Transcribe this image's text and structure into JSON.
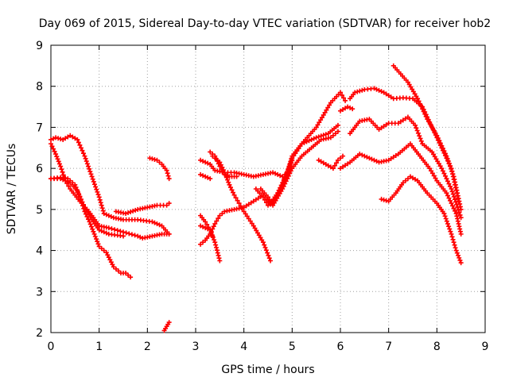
{
  "chart_data": {
    "type": "scatter",
    "title": "Day 069 of 2015, Sidereal Day-to-day VTEC variation (SDTVAR) for receiver hob2",
    "xlabel": "GPS time / hours",
    "ylabel": "SDTVAR / TECUs",
    "xlim": [
      0,
      9
    ],
    "ylim": [
      2,
      9
    ],
    "xticks": [
      "0",
      "1",
      "2",
      "3",
      "4",
      "5",
      "6",
      "7",
      "8",
      "9"
    ],
    "yticks": [
      "2",
      "3",
      "4",
      "5",
      "6",
      "7",
      "8",
      "9"
    ],
    "grid": true,
    "marker": "plus",
    "color": "#ff0000",
    "series": [
      {
        "name": "s1",
        "points": [
          [
            0.0,
            6.7
          ],
          [
            0.1,
            6.75
          ],
          [
            0.25,
            6.7
          ],
          [
            0.4,
            6.8
          ],
          [
            0.55,
            6.7
          ],
          [
            0.7,
            6.3
          ],
          [
            0.85,
            5.8
          ],
          [
            1.0,
            5.3
          ],
          [
            1.1,
            4.9
          ],
          [
            1.3,
            4.8
          ],
          [
            1.5,
            4.75
          ],
          [
            1.8,
            4.75
          ],
          [
            2.1,
            4.7
          ],
          [
            2.3,
            4.6
          ],
          [
            2.45,
            4.4
          ]
        ]
      },
      {
        "name": "s2",
        "points": [
          [
            0.0,
            6.6
          ],
          [
            0.1,
            6.35
          ],
          [
            0.2,
            6.05
          ],
          [
            0.3,
            5.7
          ],
          [
            0.4,
            5.5
          ],
          [
            0.5,
            5.35
          ],
          [
            0.6,
            5.2
          ],
          [
            0.75,
            5.0
          ],
          [
            0.85,
            4.85
          ],
          [
            1.0,
            4.6
          ],
          [
            1.2,
            4.55
          ],
          [
            1.5,
            4.45
          ],
          [
            1.8,
            4.35
          ],
          [
            1.9,
            4.3
          ],
          [
            2.1,
            4.35
          ],
          [
            2.3,
            4.4
          ],
          [
            2.45,
            4.4
          ]
        ]
      },
      {
        "name": "s3",
        "points": [
          [
            0.0,
            5.75
          ],
          [
            0.2,
            5.78
          ],
          [
            0.35,
            5.75
          ],
          [
            0.5,
            5.6
          ],
          [
            0.6,
            5.3
          ],
          [
            0.7,
            4.95
          ],
          [
            0.8,
            4.7
          ],
          [
            0.9,
            4.4
          ],
          [
            1.0,
            4.1
          ],
          [
            1.15,
            3.95
          ],
          [
            1.3,
            3.6
          ],
          [
            1.45,
            3.45
          ],
          [
            1.55,
            3.45
          ],
          [
            1.65,
            3.35
          ]
        ]
      },
      {
        "name": "s4",
        "points": [
          [
            0.0,
            5.75
          ],
          [
            0.2,
            5.75
          ],
          [
            0.4,
            5.65
          ],
          [
            0.55,
            5.45
          ],
          [
            0.7,
            5.05
          ],
          [
            0.85,
            4.75
          ],
          [
            1.0,
            4.5
          ],
          [
            1.2,
            4.4
          ],
          [
            1.5,
            4.35
          ]
        ]
      },
      {
        "name": "s5",
        "points": [
          [
            1.35,
            4.95
          ],
          [
            1.55,
            4.9
          ],
          [
            1.8,
            5.0
          ],
          [
            2.0,
            5.05
          ],
          [
            2.2,
            5.1
          ],
          [
            2.4,
            5.1
          ],
          [
            2.45,
            5.15
          ]
        ]
      },
      {
        "name": "s6",
        "points": [
          [
            2.05,
            6.25
          ],
          [
            2.2,
            6.2
          ],
          [
            2.3,
            6.1
          ],
          [
            2.4,
            5.95
          ],
          [
            2.45,
            5.75
          ]
        ]
      },
      {
        "name": "s7",
        "points": [
          [
            2.35,
            2.05
          ],
          [
            2.4,
            2.15
          ],
          [
            2.45,
            2.25
          ]
        ]
      },
      {
        "name": "s8",
        "points": [
          [
            3.1,
            6.2
          ],
          [
            3.2,
            6.15
          ],
          [
            3.3,
            6.1
          ],
          [
            3.4,
            5.95
          ],
          [
            3.6,
            5.9
          ],
          [
            3.8,
            5.9
          ],
          [
            4.0,
            5.85
          ],
          [
            4.2,
            5.8
          ],
          [
            4.4,
            5.85
          ],
          [
            4.6,
            5.9
          ],
          [
            4.8,
            5.8
          ],
          [
            4.9,
            5.9
          ],
          [
            5.0,
            6.2
          ]
        ]
      },
      {
        "name": "s9",
        "points": [
          [
            3.1,
            5.85
          ],
          [
            3.2,
            5.8
          ],
          [
            3.3,
            5.75
          ]
        ]
      },
      {
        "name": "s10",
        "points": [
          [
            3.1,
            4.85
          ],
          [
            3.2,
            4.7
          ],
          [
            3.3,
            4.5
          ],
          [
            3.4,
            4.2
          ],
          [
            3.5,
            3.75
          ]
        ]
      },
      {
        "name": "s11",
        "points": [
          [
            3.1,
            4.15
          ],
          [
            3.2,
            4.25
          ],
          [
            3.3,
            4.4
          ],
          [
            3.4,
            4.65
          ],
          [
            3.5,
            4.85
          ],
          [
            3.6,
            4.95
          ],
          [
            3.8,
            5.0
          ],
          [
            4.0,
            5.05
          ],
          [
            4.2,
            5.2
          ],
          [
            4.4,
            5.35
          ],
          [
            4.55,
            5.15
          ],
          [
            4.7,
            5.4
          ],
          [
            4.9,
            5.9
          ],
          [
            5.0,
            6.3
          ],
          [
            5.2,
            6.6
          ],
          [
            5.5,
            6.75
          ],
          [
            5.75,
            6.85
          ],
          [
            5.95,
            7.05
          ]
        ]
      },
      {
        "name": "s12",
        "points": [
          [
            3.1,
            4.6
          ],
          [
            3.2,
            4.55
          ],
          [
            3.3,
            4.5
          ],
          [
            3.35,
            4.35
          ]
        ]
      },
      {
        "name": "s13",
        "points": [
          [
            3.35,
            6.3
          ],
          [
            3.5,
            6.15
          ],
          [
            3.6,
            5.9
          ],
          [
            3.7,
            5.6
          ],
          [
            3.8,
            5.35
          ],
          [
            3.9,
            5.15
          ],
          [
            4.0,
            4.95
          ],
          [
            4.2,
            4.6
          ],
          [
            4.4,
            4.2
          ],
          [
            4.55,
            3.75
          ]
        ]
      },
      {
        "name": "s14",
        "points": [
          [
            3.3,
            6.4
          ],
          [
            3.4,
            6.3
          ],
          [
            3.5,
            6.05
          ],
          [
            3.6,
            5.85
          ],
          [
            3.7,
            5.8
          ],
          [
            3.85,
            5.8
          ]
        ]
      },
      {
        "name": "s15",
        "points": [
          [
            4.25,
            5.5
          ],
          [
            4.4,
            5.3
          ],
          [
            4.5,
            5.1
          ],
          [
            4.6,
            5.15
          ],
          [
            4.8,
            5.6
          ],
          [
            5.0,
            6.25
          ],
          [
            5.2,
            6.6
          ],
          [
            5.5,
            7.0
          ],
          [
            5.8,
            7.6
          ],
          [
            6.0,
            7.85
          ],
          [
            6.1,
            7.65
          ]
        ]
      },
      {
        "name": "s16",
        "points": [
          [
            4.35,
            5.5
          ],
          [
            4.5,
            5.3
          ],
          [
            4.6,
            5.1
          ],
          [
            4.8,
            5.5
          ],
          [
            5.0,
            6.0
          ],
          [
            5.2,
            6.3
          ],
          [
            5.4,
            6.5
          ],
          [
            5.6,
            6.7
          ],
          [
            5.8,
            6.75
          ],
          [
            5.95,
            6.9
          ]
        ]
      },
      {
        "name": "s17",
        "points": [
          [
            5.55,
            6.2
          ],
          [
            5.7,
            6.1
          ],
          [
            5.85,
            6.0
          ],
          [
            5.95,
            6.2
          ],
          [
            6.05,
            6.3
          ]
        ]
      },
      {
        "name": "s18",
        "points": [
          [
            6.0,
            7.4
          ],
          [
            6.15,
            7.5
          ],
          [
            6.25,
            7.45
          ]
        ]
      },
      {
        "name": "s19",
        "points": [
          [
            6.2,
            7.7
          ],
          [
            6.3,
            7.85
          ],
          [
            6.5,
            7.92
          ],
          [
            6.7,
            7.95
          ],
          [
            6.9,
            7.85
          ],
          [
            7.1,
            7.7
          ],
          [
            7.3,
            7.72
          ],
          [
            7.5,
            7.7
          ],
          [
            7.7,
            7.5
          ],
          [
            7.9,
            7.0
          ],
          [
            8.1,
            6.5
          ],
          [
            8.3,
            6.0
          ],
          [
            8.45,
            5.2
          ]
        ]
      },
      {
        "name": "s20",
        "points": [
          [
            6.0,
            6.0
          ],
          [
            6.2,
            6.15
          ],
          [
            6.4,
            6.35
          ],
          [
            6.6,
            6.25
          ],
          [
            6.8,
            6.15
          ],
          [
            7.0,
            6.2
          ],
          [
            7.2,
            6.35
          ],
          [
            7.45,
            6.6
          ],
          [
            7.65,
            6.3
          ],
          [
            7.85,
            6.0
          ],
          [
            8.0,
            5.7
          ],
          [
            8.2,
            5.4
          ],
          [
            8.4,
            4.9
          ],
          [
            8.5,
            4.4
          ]
        ]
      },
      {
        "name": "s21",
        "points": [
          [
            6.2,
            6.85
          ],
          [
            6.4,
            7.15
          ],
          [
            6.6,
            7.2
          ],
          [
            6.8,
            6.95
          ],
          [
            7.0,
            7.1
          ],
          [
            7.2,
            7.1
          ],
          [
            7.4,
            7.25
          ],
          [
            7.55,
            7.05
          ],
          [
            7.7,
            6.6
          ],
          [
            7.9,
            6.4
          ],
          [
            8.1,
            6.0
          ],
          [
            8.3,
            5.5
          ],
          [
            8.5,
            4.8
          ]
        ]
      },
      {
        "name": "s22",
        "points": [
          [
            7.1,
            8.5
          ],
          [
            7.25,
            8.3
          ],
          [
            7.4,
            8.1
          ],
          [
            7.6,
            7.7
          ],
          [
            7.8,
            7.2
          ],
          [
            8.0,
            6.8
          ],
          [
            8.2,
            6.3
          ],
          [
            8.35,
            5.8
          ],
          [
            8.5,
            5.0
          ]
        ]
      },
      {
        "name": "s23",
        "points": [
          [
            6.85,
            5.25
          ],
          [
            7.0,
            5.2
          ],
          [
            7.15,
            5.4
          ],
          [
            7.3,
            5.65
          ],
          [
            7.45,
            5.8
          ],
          [
            7.6,
            5.7
          ],
          [
            7.8,
            5.4
          ],
          [
            8.0,
            5.15
          ],
          [
            8.15,
            4.9
          ],
          [
            8.3,
            4.4
          ],
          [
            8.4,
            4.0
          ],
          [
            8.5,
            3.7
          ]
        ]
      }
    ]
  }
}
